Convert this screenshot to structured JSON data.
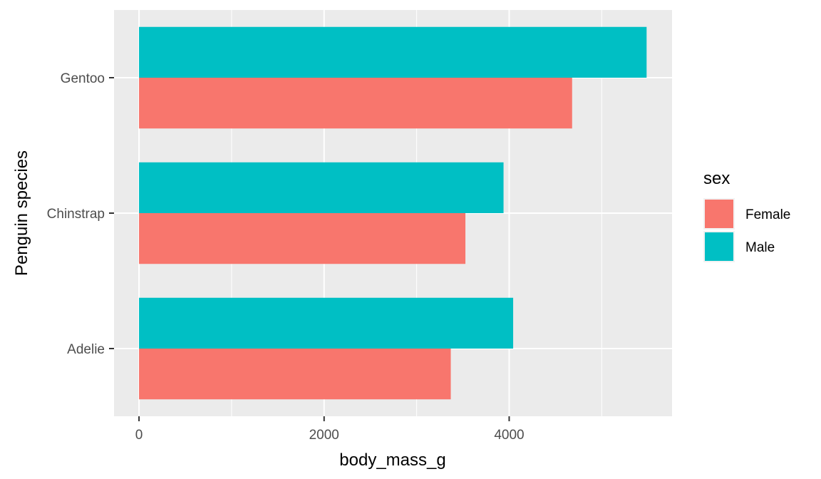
{
  "chart_data": {
    "type": "bar",
    "orientation": "horizontal",
    "title": "",
    "xlabel": "body_mass_g",
    "ylabel": "Penguin species",
    "categories": [
      "Adelie",
      "Chinstrap",
      "Gentoo"
    ],
    "series": [
      {
        "name": "Female",
        "color": "#F8766D",
        "values": [
          3369,
          3527,
          4680
        ]
      },
      {
        "name": "Male",
        "color": "#00BFC4",
        "values": [
          4043,
          3939,
          5485
        ]
      }
    ],
    "xlim": [
      -270,
      5760
    ],
    "xticks": [
      0,
      2000,
      4000
    ],
    "xtick_labels": [
      "0",
      "2000",
      "4000"
    ],
    "grid": true,
    "panel_background": "#EBEBEB",
    "legend": {
      "title": "sex",
      "position": "right"
    }
  }
}
